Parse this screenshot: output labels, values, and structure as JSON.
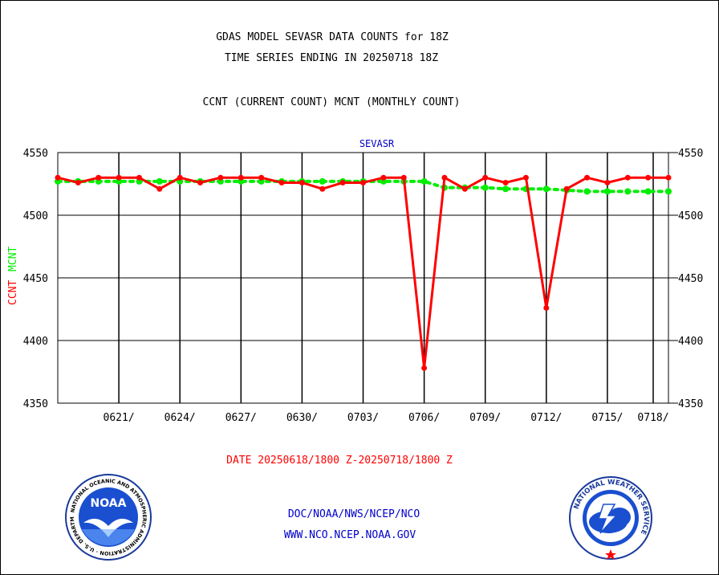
{
  "header": {
    "title_line1": "GDAS MODEL SEVASR DATA COUNTS for 18Z",
    "title_line2": "TIME SERIES ENDING IN 20250718 18Z",
    "subtitle": "CCNT (CURRENT COUNT) MCNT (MONTHLY COUNT)"
  },
  "footer": {
    "date_range": "DATE 20250618/1800 Z-20250718/1800 Z",
    "org_path": "DOC/NOAA/NWS/NCEP/NCO",
    "website": "WWW.NCO.NCEP.NOAA.GOV"
  },
  "logos": {
    "noaa_text": "NOAA",
    "noaa_ring": "NATIONAL OCEANIC AND ATMOSPHERIC ADMINISTRATION · U.S. DEPARTMENT OF COMMERCE",
    "nws_ring": "NATIONAL WEATHER SERVICE"
  },
  "chart_data": {
    "type": "line",
    "title": "SEVASR",
    "ylabel_ccnt": "CCNT",
    "ylabel_mcnt": "MCNT",
    "ylim": [
      4350,
      4550
    ],
    "yticks": [
      4350,
      4400,
      4450,
      4500,
      4550
    ],
    "xlim": [
      0,
      30
    ],
    "xticks": [
      {
        "x": 3,
        "label": "0621/"
      },
      {
        "x": 6,
        "label": "0624/"
      },
      {
        "x": 9,
        "label": "0627/"
      },
      {
        "x": 12,
        "label": "0630/"
      },
      {
        "x": 15,
        "label": "0703/"
      },
      {
        "x": 18,
        "label": "0706/"
      },
      {
        "x": 21,
        "label": "0709/"
      },
      {
        "x": 24,
        "label": "0712/"
      },
      {
        "x": 27,
        "label": "0715/"
      },
      {
        "x": 30,
        "label": "0718/"
      }
    ],
    "grid": true,
    "colors": {
      "ccnt": "#ff0000",
      "mcnt": "#00ee00",
      "title": "#0000cc",
      "footer_red": "#ff0000",
      "footer_blue": "#0000cc"
    },
    "series": [
      {
        "name": "CCNT",
        "x": [
          0,
          1,
          2,
          3,
          4,
          5,
          6,
          7,
          8,
          9,
          10,
          11,
          12,
          13,
          14,
          15,
          16,
          17,
          18,
          19,
          20,
          21,
          22,
          23,
          24,
          25,
          26,
          27,
          28,
          29,
          30
        ],
        "values": [
          4530,
          4526,
          4530,
          4530,
          4530,
          4521,
          4530,
          4526,
          4530,
          4530,
          4530,
          4526,
          4526,
          4521,
          4526,
          4526,
          4530,
          4530,
          4378,
          4530,
          4521,
          4530,
          4526,
          4530,
          4426,
          4521,
          4530,
          4526,
          4530,
          4530,
          4530
        ]
      },
      {
        "name": "MCNT",
        "x": [
          0,
          1,
          2,
          3,
          4,
          5,
          6,
          7,
          8,
          9,
          10,
          11,
          12,
          13,
          14,
          15,
          16,
          17,
          18,
          19,
          20,
          21,
          22,
          23,
          24,
          25,
          26,
          27,
          28,
          29,
          30
        ],
        "values": [
          4527,
          4527,
          4527,
          4527,
          4527,
          4527,
          4527,
          4527,
          4527,
          4527,
          4527,
          4527,
          4527,
          4527,
          4527,
          4527,
          4527,
          4527,
          4527,
          4522,
          4522,
          4522,
          4521,
          4521,
          4521,
          4520,
          4519,
          4519,
          4519,
          4519,
          4519
        ]
      }
    ]
  }
}
